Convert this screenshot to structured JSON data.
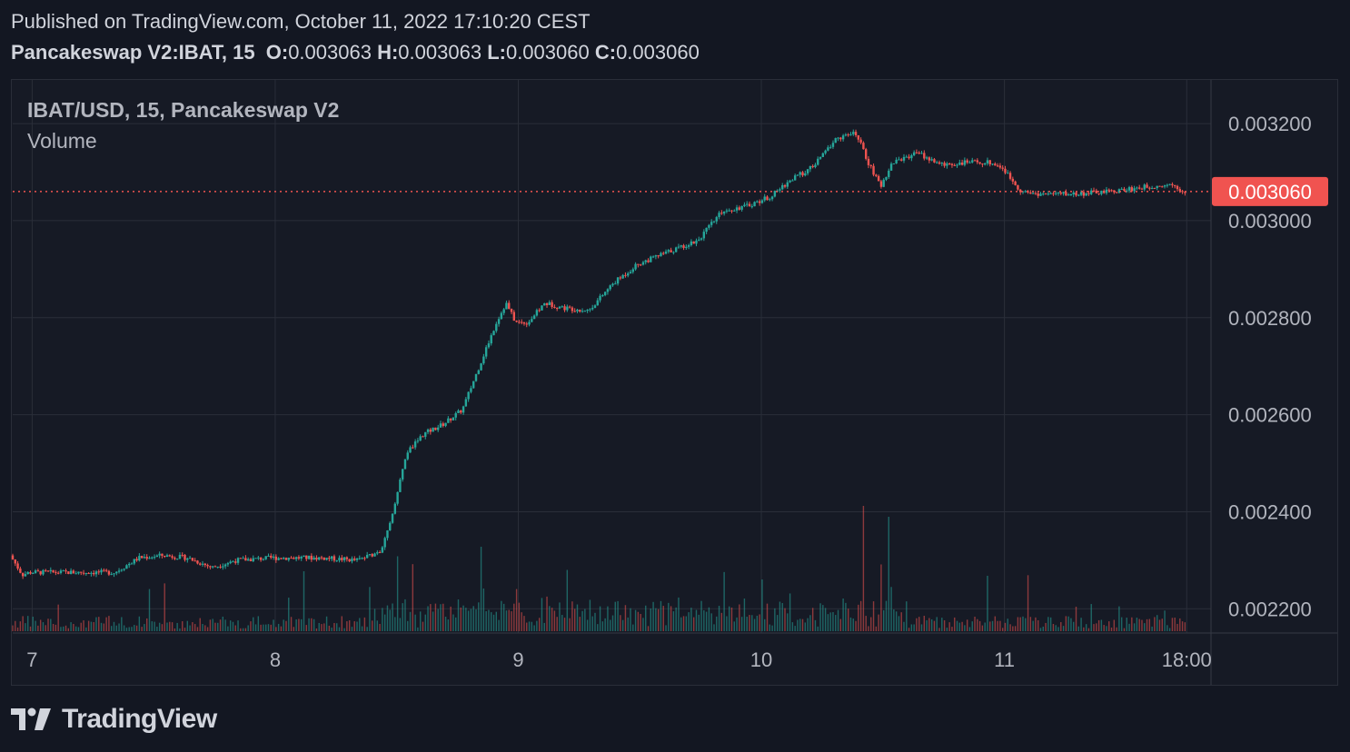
{
  "header": {
    "published": "Published on TradingView.com, October 11, 2022 17:10:20 CEST",
    "symbol": "Pancakeswap V2:IBAT, 15",
    "open_label": "O:",
    "open": "0.003063",
    "high_label": "H:",
    "high": "0.003063",
    "low_label": "L:",
    "low": "0.003060",
    "close_label": "C:",
    "close": "0.003060"
  },
  "legend": {
    "title": "IBAT/USD, 15, Pancakeswap V2",
    "volume": "Volume"
  },
  "logo": {
    "text": "TradingView"
  },
  "colors": {
    "background": "#131722",
    "up": "#26a69a",
    "down": "#ef5350",
    "grid": "#2a2e39",
    "text": "#d1d4dc",
    "last_price_bg": "#f05350"
  },
  "chart_data": {
    "type": "candlestick",
    "title": "IBAT/USD, 15, Pancakeswap V2",
    "x_ticks": [
      "7",
      "8",
      "9",
      "10",
      "11",
      "18:00"
    ],
    "x_tick_pos": [
      7.0,
      8.0,
      9.0,
      10.0,
      11.0,
      11.75
    ],
    "x_range": [
      6.92,
      11.85
    ],
    "y_ticks": [
      "0.003200",
      "0.003000",
      "0.002800",
      "0.002600",
      "0.002400",
      "0.002200"
    ],
    "y_tick_values": [
      0.0032,
      0.003,
      0.0028,
      0.0026,
      0.0024,
      0.0022
    ],
    "ylim": [
      0.00215,
      0.00329
    ],
    "last_price": 0.00306,
    "last_price_label": "0.003060",
    "price_path": [
      [
        6.92,
        0.00231
      ],
      [
        6.97,
        0.00227
      ],
      [
        7.0,
        0.002275
      ],
      [
        7.2,
        0.002275
      ],
      [
        7.35,
        0.002275
      ],
      [
        7.45,
        0.002305
      ],
      [
        7.55,
        0.00231
      ],
      [
        7.65,
        0.002305
      ],
      [
        7.75,
        0.002285
      ],
      [
        7.85,
        0.0023
      ],
      [
        8.0,
        0.002305
      ],
      [
        8.2,
        0.002305
      ],
      [
        8.35,
        0.0023
      ],
      [
        8.45,
        0.00232
      ],
      [
        8.5,
        0.00241
      ],
      [
        8.55,
        0.00252
      ],
      [
        8.62,
        0.00256
      ],
      [
        8.7,
        0.00258
      ],
      [
        8.78,
        0.00261
      ],
      [
        8.85,
        0.0027
      ],
      [
        8.92,
        0.00279
      ],
      [
        8.96,
        0.00283
      ],
      [
        9.0,
        0.00279
      ],
      [
        9.05,
        0.00279
      ],
      [
        9.12,
        0.00283
      ],
      [
        9.2,
        0.00282
      ],
      [
        9.3,
        0.002815
      ],
      [
        9.4,
        0.00287
      ],
      [
        9.5,
        0.00291
      ],
      [
        9.6,
        0.00293
      ],
      [
        9.75,
        0.00296
      ],
      [
        9.85,
        0.00302
      ],
      [
        9.95,
        0.00303
      ],
      [
        10.05,
        0.00305
      ],
      [
        10.12,
        0.00308
      ],
      [
        10.22,
        0.00311
      ],
      [
        10.32,
        0.00317
      ],
      [
        10.4,
        0.00318
      ],
      [
        10.45,
        0.00312
      ],
      [
        10.5,
        0.00307
      ],
      [
        10.55,
        0.00312
      ],
      [
        10.65,
        0.00314
      ],
      [
        10.75,
        0.003115
      ],
      [
        10.85,
        0.00312
      ],
      [
        10.95,
        0.00312
      ],
      [
        11.0,
        0.00311
      ],
      [
        11.08,
        0.00306
      ],
      [
        11.15,
        0.003055
      ],
      [
        11.3,
        0.003055
      ],
      [
        11.45,
        0.00306
      ],
      [
        11.6,
        0.00307
      ],
      [
        11.7,
        0.003075
      ],
      [
        11.75,
        0.00306
      ]
    ],
    "volume_spikes": [
      [
        8.5,
        0.55
      ],
      [
        8.85,
        0.62
      ],
      [
        9.2,
        0.45
      ],
      [
        10.0,
        0.38
      ],
      [
        10.42,
        0.92
      ],
      [
        10.52,
        0.84
      ],
      [
        11.3,
        0.18
      ]
    ]
  }
}
